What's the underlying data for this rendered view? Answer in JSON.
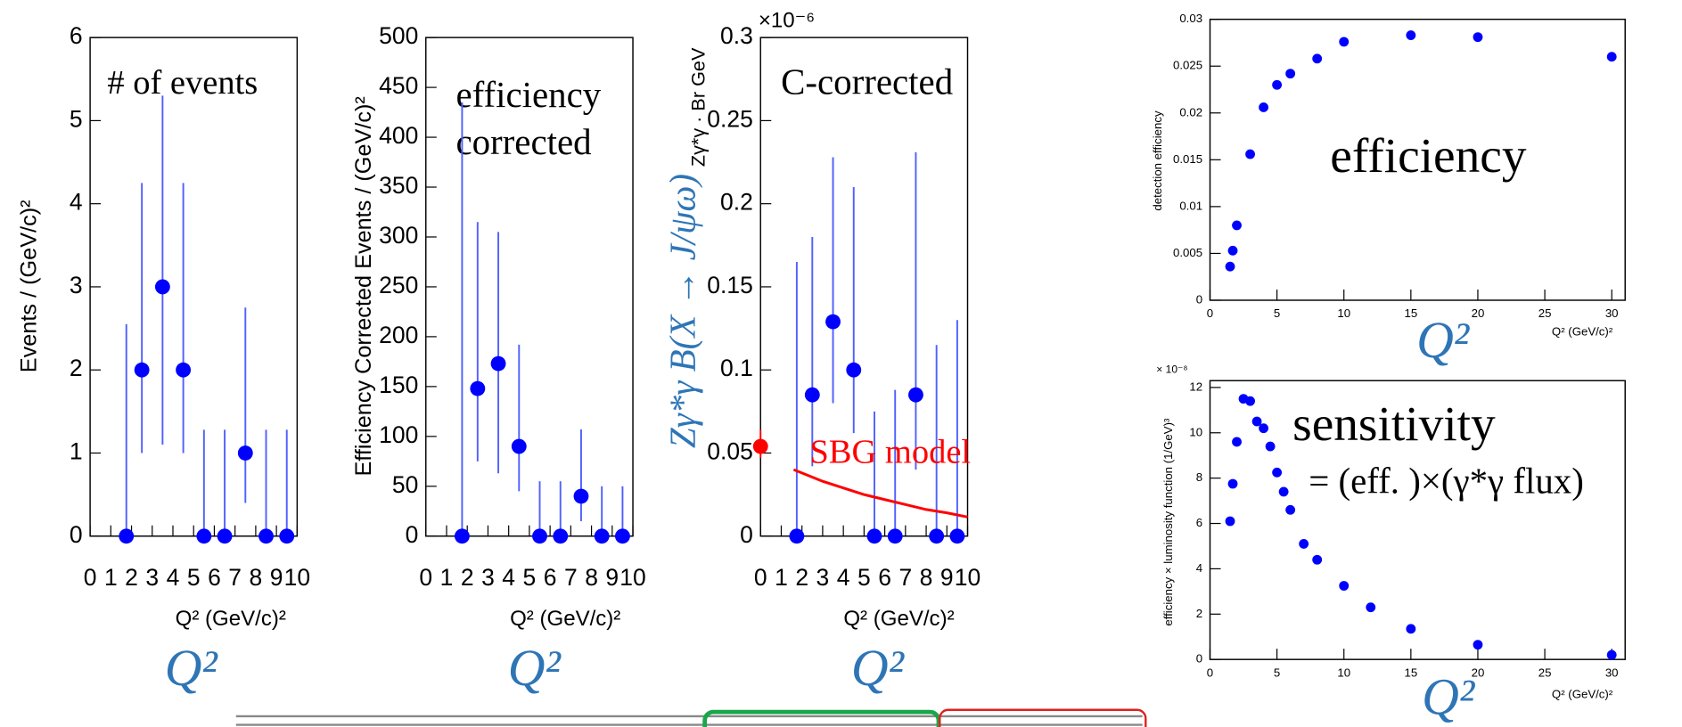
{
  "chart_data": [
    {
      "type": "errorbar",
      "ylabel": "Events / (GeV/c)²",
      "xlabel": "Q² (GeV/c)²",
      "annotations": [
        "# of events",
        "Q²"
      ],
      "xlim": [
        0,
        10
      ],
      "ylim": [
        0,
        6
      ],
      "xticks": [
        0,
        1,
        2,
        3,
        4,
        5,
        6,
        7,
        8,
        9,
        10
      ],
      "yticks": [
        0,
        1,
        2,
        3,
        4,
        5,
        6
      ],
      "series": [
        {
          "color": "#0000ff",
          "x": [
            1.75,
            2.5,
            3.5,
            4.5,
            5.5,
            6.5,
            7.5,
            8.5,
            9.5
          ],
          "values": [
            0,
            2,
            3,
            2,
            0,
            0,
            1,
            0,
            0
          ],
          "err_low": [
            0,
            1,
            1.9,
            1,
            0,
            0,
            0.6,
            0,
            0
          ],
          "err_high": [
            2.55,
            2.25,
            2.3,
            2.25,
            1.28,
            1.28,
            1.75,
            1.28,
            1.28
          ]
        }
      ]
    },
    {
      "type": "errorbar",
      "ylabel": "Efficiency Corrected Events / (GeV/c)²",
      "xlabel": "Q² (GeV/c)²",
      "annotations": [
        "efficiency",
        "corrected",
        "Q²"
      ],
      "xlim": [
        0,
        10
      ],
      "ylim": [
        0,
        500
      ],
      "xticks": [
        0,
        1,
        2,
        3,
        4,
        5,
        6,
        7,
        8,
        9,
        10
      ],
      "yticks": [
        0,
        50,
        100,
        150,
        200,
        250,
        300,
        350,
        400,
        450,
        500
      ],
      "series": [
        {
          "color": "#0000ff",
          "x": [
            1.75,
            2.5,
            3.5,
            4.5,
            5.5,
            6.5,
            7.5,
            8.5,
            9.5
          ],
          "values": [
            0,
            148,
            173,
            90,
            0,
            0,
            40,
            0,
            0
          ],
          "err_low": [
            0,
            73,
            110,
            45,
            0,
            0,
            25,
            0,
            0
          ],
          "err_high": [
            435,
            167,
            132,
            102,
            55,
            55,
            67,
            50,
            50
          ]
        }
      ]
    },
    {
      "type": "errorbar",
      "ylabel": "Zγ*γ · Br GeV",
      "xlabel": "Q² (GeV/c)²",
      "multiplier": "×10⁻⁶",
      "annotations": [
        "C-corrected",
        "Zγ*γ B(X → J/ψω)",
        "Q²"
      ],
      "xlim": [
        0,
        10
      ],
      "ylim": [
        0,
        0.3
      ],
      "xticks": [
        0,
        1,
        2,
        3,
        4,
        5,
        6,
        7,
        8,
        9,
        10
      ],
      "yticks": [
        0,
        0.05,
        0.1,
        0.15,
        0.2,
        0.25,
        0.3
      ],
      "series": [
        {
          "color": "#0000ff",
          "x": [
            1.75,
            2.5,
            3.5,
            4.5,
            5.5,
            6.5,
            7.5,
            8.5,
            9.5
          ],
          "values": [
            0,
            0.085,
            0.129,
            0.1,
            0,
            0,
            0.085,
            0,
            0
          ],
          "err_low": [
            0,
            0.043,
            0.049,
            0.038,
            0,
            0,
            0.045,
            0,
            0
          ],
          "err_high": [
            0.165,
            0.095,
            0.099,
            0.11,
            0.075,
            0.088,
            0.146,
            0.115,
            0.13
          ]
        },
        {
          "color": "#ff0000",
          "x": [
            0
          ],
          "values": [
            0.054
          ],
          "err_low": [
            0.007
          ],
          "err_high": [
            0.01
          ]
        },
        {
          "type": "line",
          "name": "SBG model",
          "color": "#ff0000",
          "x": [
            1.6,
            2,
            3,
            4,
            5,
            6,
            7,
            8,
            9,
            10
          ],
          "values": [
            0.04,
            0.038,
            0.033,
            0.029,
            0.025,
            0.022,
            0.019,
            0.016,
            0.014,
            0.0115
          ]
        }
      ]
    },
    {
      "type": "scatter",
      "ylabel": "detection efficiency",
      "xlabel": "Q² (GeV/c)²",
      "annotations": [
        "efficiency",
        "Q²"
      ],
      "xlim": [
        0,
        31
      ],
      "ylim": [
        0,
        0.03
      ],
      "xticks": [
        0,
        5,
        10,
        15,
        20,
        25,
        30
      ],
      "yticks": [
        0,
        0.005,
        0.01,
        0.015,
        0.02,
        0.025,
        0.03
      ],
      "series": [
        {
          "color": "#0000ff",
          "x": [
            1.5,
            1.7,
            2,
            3,
            4,
            5,
            6,
            8,
            10,
            15,
            20,
            30
          ],
          "values": [
            0.0036,
            0.0053,
            0.008,
            0.0156,
            0.0206,
            0.023,
            0.0242,
            0.0258,
            0.0276,
            0.0283,
            0.0281,
            0.026
          ]
        }
      ]
    },
    {
      "type": "scatter",
      "ylabel": "efficiency × luminosity function (1/GeV)³",
      "xlabel": "Q² (GeV/c)²",
      "multiplier": "× 10⁻⁸",
      "annotations": [
        "sensitivity",
        "= (eff. )×(γ*γ flux)",
        "Q²"
      ],
      "xlim": [
        0,
        31
      ],
      "ylim": [
        0,
        12.3
      ],
      "xticks": [
        0,
        5,
        10,
        15,
        20,
        25,
        30
      ],
      "yticks": [
        0,
        2,
        4,
        6,
        8,
        10,
        12
      ],
      "series": [
        {
          "color": "#0000ff",
          "x": [
            1.5,
            1.7,
            2,
            2.5,
            3,
            3.5,
            4,
            4.5,
            5,
            5.5,
            6,
            7,
            8,
            10,
            12,
            15,
            20,
            30
          ],
          "values": [
            6.1,
            7.75,
            9.6,
            11.5,
            11.4,
            10.5,
            10.2,
            9.4,
            8.25,
            7.4,
            6.6,
            5.1,
            4.4,
            3.25,
            2.3,
            1.35,
            0.65,
            0.2
          ]
        }
      ]
    }
  ]
}
